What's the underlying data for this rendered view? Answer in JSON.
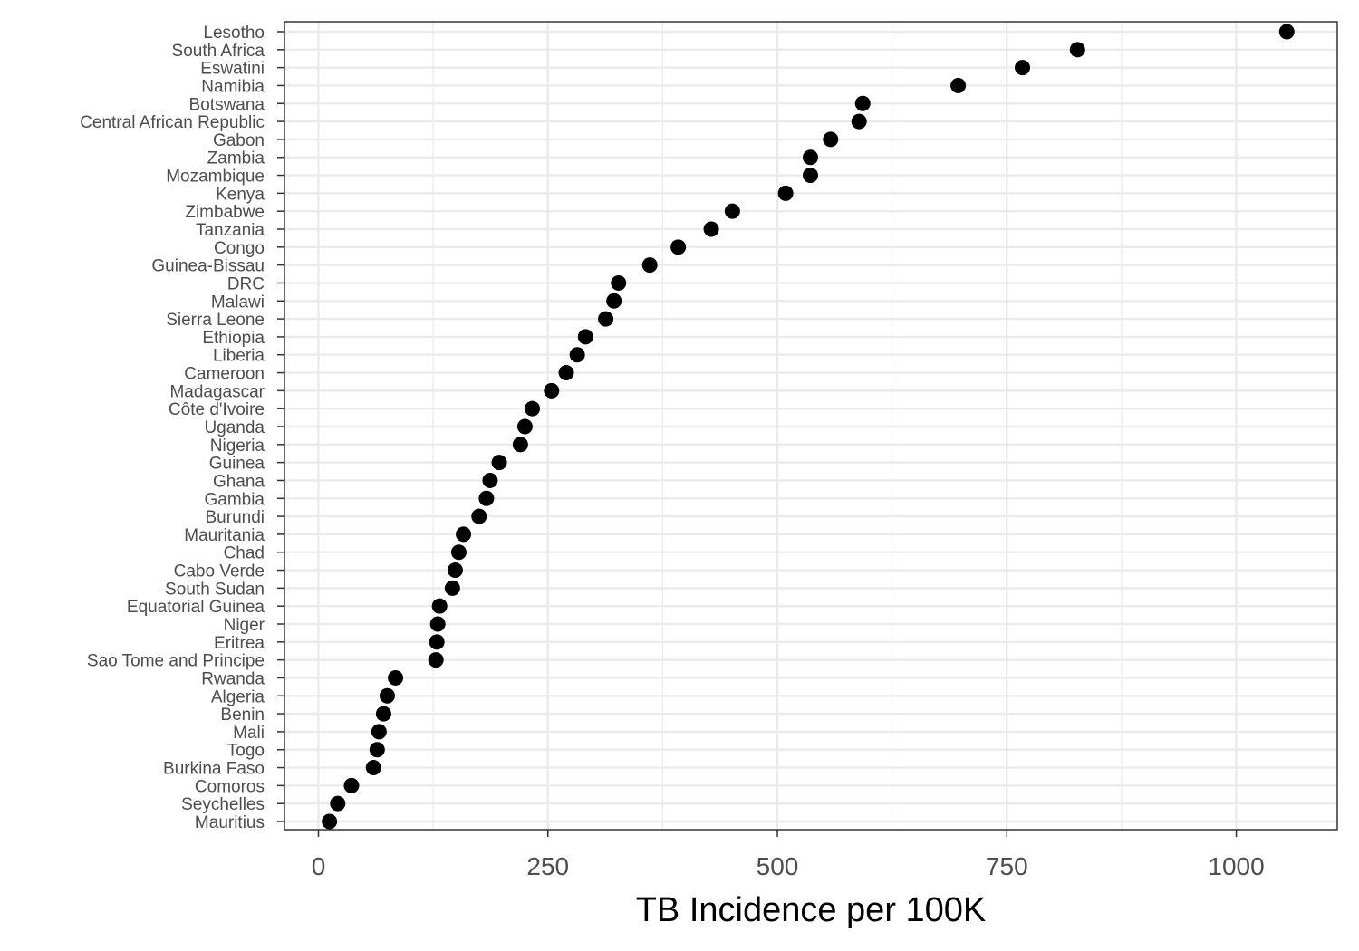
{
  "chart_data": {
    "type": "scatter",
    "title": "",
    "xlabel": "TB Incidence per 100K",
    "ylabel": "",
    "xlim": [
      -37,
      1110
    ],
    "x_ticks": [
      0,
      250,
      500,
      750,
      1000
    ],
    "x_tick_labels": [
      "0",
      "250",
      "500",
      "750",
      "1000"
    ],
    "grid": true,
    "legend": "none",
    "marker_color": "#000000",
    "points": [
      {
        "country": "Lesotho",
        "value": 1055
      },
      {
        "country": "South Africa",
        "value": 827
      },
      {
        "country": "Eswatini",
        "value": 767
      },
      {
        "country": "Namibia",
        "value": 697
      },
      {
        "country": "Botswana",
        "value": 593
      },
      {
        "country": "Central African Republic",
        "value": 589
      },
      {
        "country": "Gabon",
        "value": 558
      },
      {
        "country": "Zambia",
        "value": 536
      },
      {
        "country": "Mozambique",
        "value": 536
      },
      {
        "country": "Kenya",
        "value": 509
      },
      {
        "country": "Zimbabwe",
        "value": 451
      },
      {
        "country": "Tanzania",
        "value": 428
      },
      {
        "country": "Congo",
        "value": 392
      },
      {
        "country": "Guinea-Bissau",
        "value": 361
      },
      {
        "country": "DRC",
        "value": 327
      },
      {
        "country": "Malawi",
        "value": 322
      },
      {
        "country": "Sierra Leone",
        "value": 313
      },
      {
        "country": "Ethiopia",
        "value": 291
      },
      {
        "country": "Liberia",
        "value": 282
      },
      {
        "country": "Cameroon",
        "value": 270
      },
      {
        "country": "Madagascar",
        "value": 254
      },
      {
        "country": "Côte d'Ivoire",
        "value": 233
      },
      {
        "country": "Uganda",
        "value": 225
      },
      {
        "country": "Nigeria",
        "value": 220
      },
      {
        "country": "Guinea",
        "value": 197
      },
      {
        "country": "Ghana",
        "value": 187
      },
      {
        "country": "Gambia",
        "value": 183
      },
      {
        "country": "Burundi",
        "value": 175
      },
      {
        "country": "Mauritania",
        "value": 158
      },
      {
        "country": "Chad",
        "value": 153
      },
      {
        "country": "Cabo Verde",
        "value": 149
      },
      {
        "country": "South Sudan",
        "value": 146
      },
      {
        "country": "Equatorial Guinea",
        "value": 132
      },
      {
        "country": "Niger",
        "value": 130
      },
      {
        "country": "Eritrea",
        "value": 129
      },
      {
        "country": "Sao Tome and Principe",
        "value": 128
      },
      {
        "country": "Rwanda",
        "value": 84
      },
      {
        "country": "Algeria",
        "value": 75
      },
      {
        "country": "Benin",
        "value": 71
      },
      {
        "country": "Mali",
        "value": 66
      },
      {
        "country": "Togo",
        "value": 64
      },
      {
        "country": "Burkina Faso",
        "value": 60
      },
      {
        "country": "Comoros",
        "value": 36
      },
      {
        "country": "Seychelles",
        "value": 21
      },
      {
        "country": "Mauritius",
        "value": 12
      }
    ]
  }
}
